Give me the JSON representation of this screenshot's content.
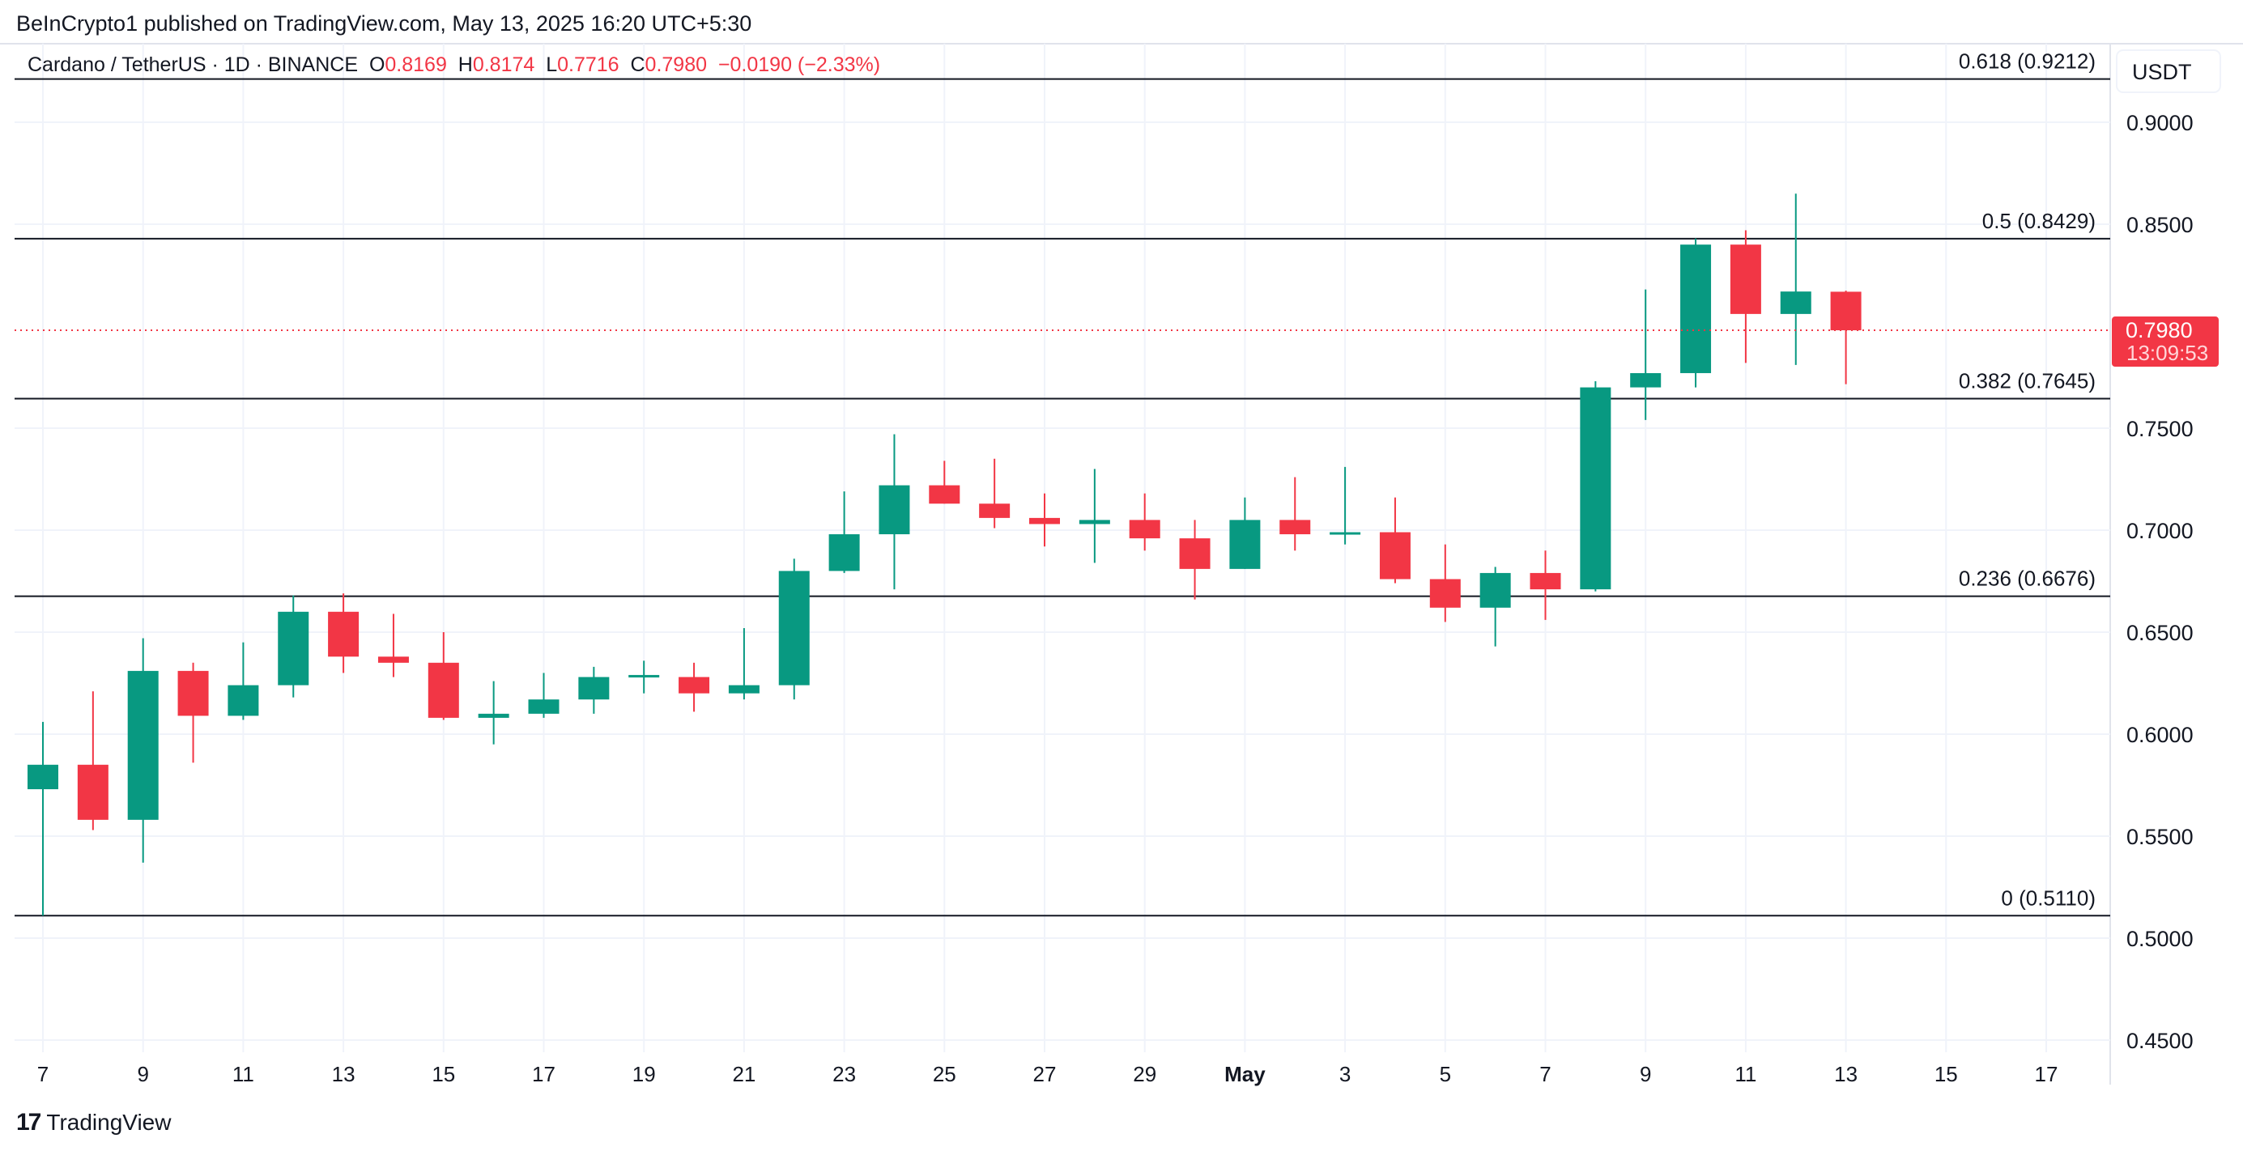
{
  "publisher_line": "BeInCrypto1 published on TradingView.com, May 13, 2025 16:20 UTC+5:30",
  "legend": {
    "symbol": "Cardano / TetherUS · 1D · BINANCE",
    "o_label": "O",
    "o": "0.8169",
    "h_label": "H",
    "h": "0.8174",
    "l_label": "L",
    "l": "0.7716",
    "c_label": "C",
    "c": "0.7980",
    "change": "−0.0190 (−2.33%)"
  },
  "currency": "USDT",
  "last_price": {
    "value": "0.7980",
    "countdown": "13:09:53"
  },
  "logo_text": "TradingView",
  "colors": {
    "up": "#089981",
    "down": "#f23645",
    "fib_line": "#131722",
    "grid": "#f0f3fa"
  },
  "chart_data": {
    "type": "candlestick",
    "ylim": [
      0.44,
      0.94
    ],
    "y_ticks": [
      "0.9000",
      "0.8500",
      "0.7500",
      "0.7000",
      "0.6500",
      "0.6000",
      "0.5500",
      "0.5000",
      "0.4500"
    ],
    "x_ticks": [
      "7",
      "9",
      "11",
      "13",
      "15",
      "17",
      "19",
      "21",
      "23",
      "25",
      "27",
      "29",
      "May",
      "3",
      "5",
      "7",
      "9",
      "11",
      "13",
      "15",
      "17"
    ],
    "fib_levels": [
      {
        "label": "0.618 (0.9212)",
        "price": 0.9212
      },
      {
        "label": "0.5 (0.8429)",
        "price": 0.8429
      },
      {
        "label": "0.382 (0.7645)",
        "price": 0.7645
      },
      {
        "label": "0.236 (0.6676)",
        "price": 0.6676
      },
      {
        "label": "0 (0.5110)",
        "price": 0.511
      }
    ],
    "candles": [
      {
        "date": "2025-04-07",
        "o": 0.573,
        "h": 0.606,
        "l": 0.511,
        "c": 0.585
      },
      {
        "date": "2025-04-08",
        "o": 0.585,
        "h": 0.621,
        "l": 0.553,
        "c": 0.558
      },
      {
        "date": "2025-04-09",
        "o": 0.558,
        "h": 0.647,
        "l": 0.537,
        "c": 0.631
      },
      {
        "date": "2025-04-10",
        "o": 0.631,
        "h": 0.635,
        "l": 0.586,
        "c": 0.609
      },
      {
        "date": "2025-04-11",
        "o": 0.609,
        "h": 0.645,
        "l": 0.607,
        "c": 0.624
      },
      {
        "date": "2025-04-12",
        "o": 0.624,
        "h": 0.668,
        "l": 0.618,
        "c": 0.66
      },
      {
        "date": "2025-04-13",
        "o": 0.66,
        "h": 0.669,
        "l": 0.63,
        "c": 0.638
      },
      {
        "date": "2025-04-14",
        "o": 0.638,
        "h": 0.659,
        "l": 0.628,
        "c": 0.635
      },
      {
        "date": "2025-04-15",
        "o": 0.635,
        "h": 0.65,
        "l": 0.607,
        "c": 0.608
      },
      {
        "date": "2025-04-16",
        "o": 0.608,
        "h": 0.626,
        "l": 0.595,
        "c": 0.61
      },
      {
        "date": "2025-04-17",
        "o": 0.61,
        "h": 0.63,
        "l": 0.608,
        "c": 0.617
      },
      {
        "date": "2025-04-18",
        "o": 0.617,
        "h": 0.633,
        "l": 0.61,
        "c": 0.628
      },
      {
        "date": "2025-04-19",
        "o": 0.628,
        "h": 0.636,
        "l": 0.62,
        "c": 0.629
      },
      {
        "date": "2025-04-20",
        "o": 0.628,
        "h": 0.635,
        "l": 0.611,
        "c": 0.62
      },
      {
        "date": "2025-04-21",
        "o": 0.62,
        "h": 0.652,
        "l": 0.617,
        "c": 0.624
      },
      {
        "date": "2025-04-22",
        "o": 0.624,
        "h": 0.686,
        "l": 0.617,
        "c": 0.68
      },
      {
        "date": "2025-04-23",
        "o": 0.68,
        "h": 0.719,
        "l": 0.679,
        "c": 0.698
      },
      {
        "date": "2025-04-24",
        "o": 0.698,
        "h": 0.747,
        "l": 0.671,
        "c": 0.722
      },
      {
        "date": "2025-04-25",
        "o": 0.722,
        "h": 0.734,
        "l": 0.713,
        "c": 0.713
      },
      {
        "date": "2025-04-26",
        "o": 0.713,
        "h": 0.735,
        "l": 0.701,
        "c": 0.706
      },
      {
        "date": "2025-04-27",
        "o": 0.706,
        "h": 0.718,
        "l": 0.692,
        "c": 0.703
      },
      {
        "date": "2025-04-28",
        "o": 0.703,
        "h": 0.73,
        "l": 0.684,
        "c": 0.705
      },
      {
        "date": "2025-04-29",
        "o": 0.705,
        "h": 0.718,
        "l": 0.69,
        "c": 0.696
      },
      {
        "date": "2025-04-30",
        "o": 0.696,
        "h": 0.705,
        "l": 0.666,
        "c": 0.681
      },
      {
        "date": "2025-05-01",
        "o": 0.681,
        "h": 0.716,
        "l": 0.681,
        "c": 0.705
      },
      {
        "date": "2025-05-02",
        "o": 0.705,
        "h": 0.726,
        "l": 0.69,
        "c": 0.698
      },
      {
        "date": "2025-05-03",
        "o": 0.698,
        "h": 0.731,
        "l": 0.693,
        "c": 0.699
      },
      {
        "date": "2025-05-04",
        "o": 0.699,
        "h": 0.716,
        "l": 0.674,
        "c": 0.676
      },
      {
        "date": "2025-05-05",
        "o": 0.676,
        "h": 0.693,
        "l": 0.655,
        "c": 0.662
      },
      {
        "date": "2025-05-06",
        "o": 0.662,
        "h": 0.682,
        "l": 0.643,
        "c": 0.679
      },
      {
        "date": "2025-05-07",
        "o": 0.679,
        "h": 0.69,
        "l": 0.656,
        "c": 0.671
      },
      {
        "date": "2025-05-08",
        "o": 0.671,
        "h": 0.773,
        "l": 0.67,
        "c": 0.77
      },
      {
        "date": "2025-05-09",
        "o": 0.77,
        "h": 0.818,
        "l": 0.754,
        "c": 0.777
      },
      {
        "date": "2025-05-10",
        "o": 0.777,
        "h": 0.843,
        "l": 0.77,
        "c": 0.84
      },
      {
        "date": "2025-05-11",
        "o": 0.84,
        "h": 0.847,
        "l": 0.782,
        "c": 0.806
      },
      {
        "date": "2025-05-12",
        "o": 0.806,
        "h": 0.865,
        "l": 0.781,
        "c": 0.817
      },
      {
        "date": "2025-05-13",
        "o": 0.8169,
        "h": 0.8174,
        "l": 0.7716,
        "c": 0.798
      }
    ]
  }
}
